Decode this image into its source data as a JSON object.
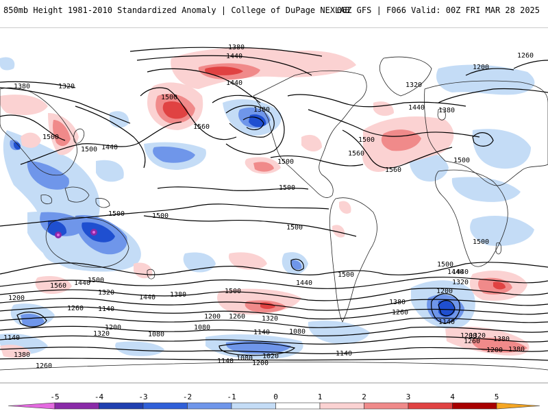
{
  "header": {
    "title": "850mb Height 1981-2010 Standardized Anomaly | College of DuPage NEXLAB",
    "run_info": "06Z GFS | F066 Valid: 00Z FRI MAR 28 2025"
  },
  "colors": {
    "ocean": "#ffffff",
    "coast": "#222222",
    "contour": "#000000",
    "neg1": "#c4dcf6",
    "neg2": "#6f96ea",
    "neg3": "#1f4fd0",
    "neg4": "#2a2a9a",
    "neg5": "#8a2aa8",
    "pos1": "#fbd2d2",
    "pos2": "#f08a8a",
    "pos3": "#e04242",
    "pos4": "#a80000",
    "pos5": "#f5a623"
  },
  "colorbar": {
    "ticks": [
      "-5",
      "-4",
      "-3",
      "-2",
      "-1",
      "0",
      "1",
      "2",
      "3",
      "4",
      "5"
    ],
    "segment_colors": [
      "#e46ae0",
      "#8a2aa8",
      "#1f3fb0",
      "#2f5fd8",
      "#6f96ea",
      "#c4dcf6",
      "#ffffff",
      "#fbd2d2",
      "#f08a8a",
      "#e04242",
      "#a80000",
      "#f5a623"
    ]
  },
  "contour_labels": [
    {
      "text": "1380"
    },
    {
      "text": "1440"
    },
    {
      "text": "1440"
    },
    {
      "text": "1380"
    },
    {
      "text": "1320"
    },
    {
      "text": "1500"
    },
    {
      "text": "1560"
    },
    {
      "text": "1380"
    },
    {
      "text": "1500"
    },
    {
      "text": "1440"
    },
    {
      "text": "1500"
    },
    {
      "text": "1500"
    },
    {
      "text": "1560"
    },
    {
      "text": "1500"
    },
    {
      "text": "1560"
    },
    {
      "text": "1200"
    },
    {
      "text": "1260"
    },
    {
      "text": "1320"
    },
    {
      "text": "1440"
    },
    {
      "text": "1380"
    },
    {
      "text": "1500"
    },
    {
      "text": "1500"
    },
    {
      "text": "1500"
    },
    {
      "text": "1500"
    },
    {
      "text": "1500"
    },
    {
      "text": "1440"
    },
    {
      "text": "1500"
    },
    {
      "text": "1440"
    },
    {
      "text": "1500"
    },
    {
      "text": "1500"
    },
    {
      "text": "1560"
    },
    {
      "text": "1500"
    },
    {
      "text": "1320"
    },
    {
      "text": "1440"
    },
    {
      "text": "1380"
    },
    {
      "text": "1200"
    },
    {
      "text": "1260"
    },
    {
      "text": "1140"
    },
    {
      "text": "1200"
    },
    {
      "text": "1260"
    },
    {
      "text": "1320"
    },
    {
      "text": "1380"
    },
    {
      "text": "1260"
    },
    {
      "text": "1500"
    },
    {
      "text": "1440"
    },
    {
      "text": "1320"
    },
    {
      "text": "1200"
    },
    {
      "text": "1200"
    },
    {
      "text": "1140"
    },
    {
      "text": "1080"
    },
    {
      "text": "1320"
    },
    {
      "text": "1380"
    },
    {
      "text": "1440"
    },
    {
      "text": "1200"
    },
    {
      "text": "1260"
    },
    {
      "text": "1140"
    },
    {
      "text": "1320"
    },
    {
      "text": "1200"
    },
    {
      "text": "1140"
    },
    {
      "text": "1080"
    },
    {
      "text": "1080"
    },
    {
      "text": "1140"
    },
    {
      "text": "1140"
    },
    {
      "text": "1080"
    },
    {
      "text": "1020"
    },
    {
      "text": "1200"
    },
    {
      "text": "1260"
    },
    {
      "text": "1380"
    },
    {
      "text": "1380"
    }
  ]
}
